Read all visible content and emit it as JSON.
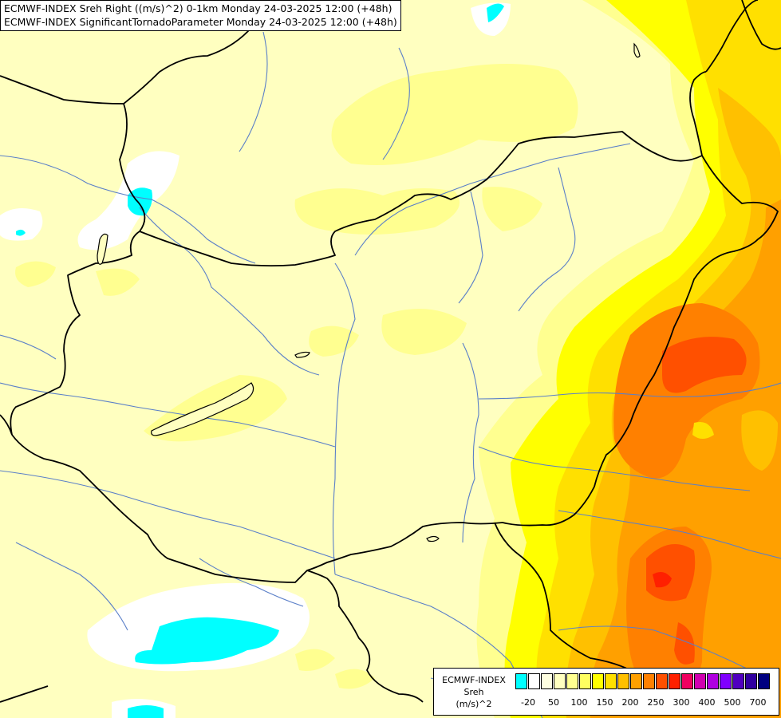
{
  "header": {
    "line1": "ECMWF-INDEX Sreh Right ((m/s)^2) 0-1km Monday 24-03-2025 12:00 (+48h)",
    "line2": "ECMWF-INDEX SignificantTornadoParameter Monday 24-03-2025 12:00 (+48h)"
  },
  "legend": {
    "line1": "ECMWF-INDEX",
    "line2": "Sreh",
    "line3": "(m/s)^2",
    "colors": [
      "#00ffff",
      "#ffffff",
      "#ffffe0",
      "#ffffc0",
      "#ffff90",
      "#ffff60",
      "#ffff00",
      "#ffe000",
      "#ffc000",
      "#ffa000",
      "#ff8000",
      "#ff5000",
      "#ff2000",
      "#f00060",
      "#d000b0",
      "#b000e0",
      "#8000ff",
      "#5000c0",
      "#3000a0",
      "#000080"
    ],
    "ticks": [
      {
        "label": "-20",
        "at": 1
      },
      {
        "label": "50",
        "at": 3
      },
      {
        "label": "100",
        "at": 5
      },
      {
        "label": "150",
        "at": 7
      },
      {
        "label": "200",
        "at": 9
      },
      {
        "label": "250",
        "at": 11
      },
      {
        "label": "300",
        "at": 13
      },
      {
        "label": "400",
        "at": 15
      },
      {
        "label": "500",
        "at": 17
      },
      {
        "label": "700",
        "at": 19
      }
    ]
  },
  "map_colors": {
    "background": "#ffffc0",
    "cyan": "#00ffff",
    "white": "#ffffff",
    "light_yellow": "#ffff90",
    "yellow": "#ffff00",
    "gold": "#ffe000",
    "orange": "#ffa000",
    "dark_orange": "#ff8000",
    "red_orange": "#ff5000",
    "red": "#ff2000",
    "border_line": "#000000",
    "river_line": "#5a7fc8"
  }
}
